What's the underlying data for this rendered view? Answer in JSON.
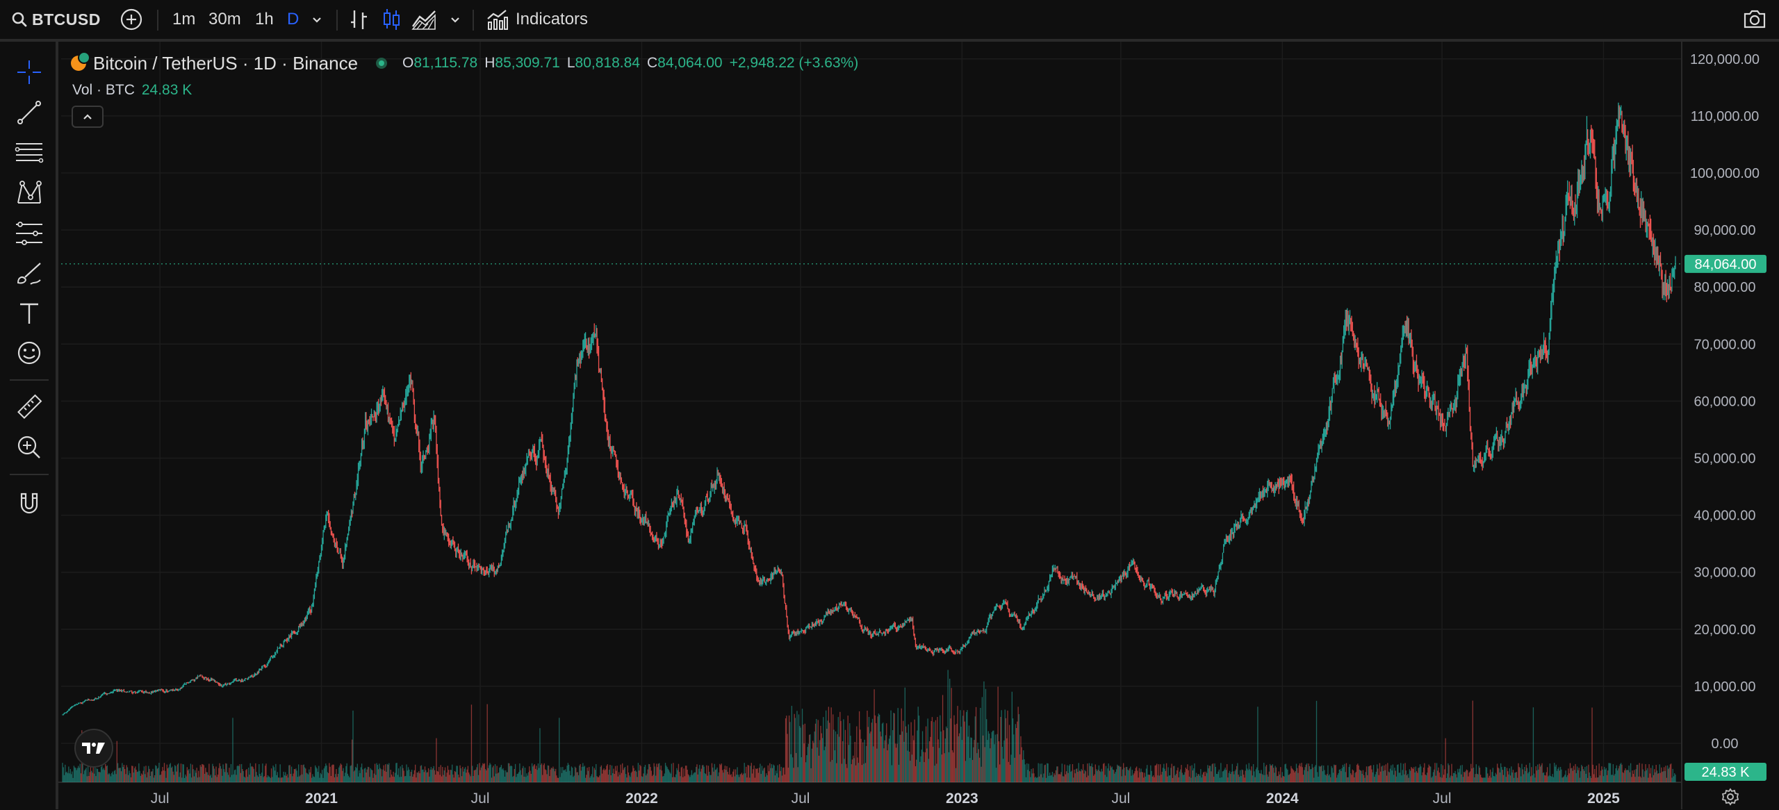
{
  "toolbar": {
    "symbol": "BTCUSD",
    "timeframes": [
      "1m",
      "30m",
      "1h",
      "D"
    ],
    "active_timeframe": "D",
    "indicators_label": "Indicators"
  },
  "legend": {
    "title": "Bitcoin / TetherUS · 1D · Binance",
    "open_key": "O",
    "open": "81,115.78",
    "high_key": "H",
    "high": "85,309.71",
    "low_key": "L",
    "low": "80,818.84",
    "close_key": "C",
    "close": "84,064.00",
    "change": "+2,948.22 (+3.63%)",
    "volume_label": "Vol · BTC",
    "volume_value": "24.83 K"
  },
  "price_axis": {
    "current_price_label": "84,064.00",
    "current_volume_label": "24.83 K"
  },
  "colors": {
    "up": "#26a69a",
    "down": "#ef5350",
    "accent": "#2962ff",
    "price_badge": "#2cb58a",
    "background": "#0f0f0f"
  },
  "chart_data": {
    "type": "candlestick",
    "symbol": "BTCUSD",
    "interval": "1D",
    "y_ticks": [
      "120,000.00",
      "110,000.00",
      "100,000.00",
      "90,000.00",
      "80,000.00",
      "70,000.00",
      "60,000.00",
      "50,000.00",
      "40,000.00",
      "30,000.00",
      "20,000.00",
      "10,000.00",
      "0.00"
    ],
    "ylim": [
      0,
      120000
    ],
    "x_ticks": [
      "Jul",
      "2021",
      "Jul",
      "2022",
      "Jul",
      "2023",
      "Jul",
      "2024",
      "Jul",
      "2025"
    ],
    "x_tick_dates": [
      "2020-07-01",
      "2021-01-01",
      "2021-07-01",
      "2022-01-01",
      "2022-07-01",
      "2023-01-01",
      "2023-07-01",
      "2024-01-01",
      "2024-07-01",
      "2025-01-01"
    ],
    "date_range": [
      "2020-03-12",
      "2025-03-24"
    ],
    "price_path": [
      [
        "2020-03-12",
        5000
      ],
      [
        "2020-03-25",
        6700
      ],
      [
        "2020-05-10",
        9000
      ],
      [
        "2020-07-20",
        9200
      ],
      [
        "2020-08-15",
        12000
      ],
      [
        "2020-09-10",
        10300
      ],
      [
        "2020-10-15",
        11500
      ],
      [
        "2020-11-20",
        18500
      ],
      [
        "2020-12-20",
        23500
      ],
      [
        "2021-01-08",
        41000
      ],
      [
        "2021-01-25",
        32000
      ],
      [
        "2021-02-20",
        56000
      ],
      [
        "2021-03-13",
        61000
      ],
      [
        "2021-03-25",
        52000
      ],
      [
        "2021-04-14",
        64000
      ],
      [
        "2021-04-25",
        49000
      ],
      [
        "2021-05-10",
        58000
      ],
      [
        "2021-05-20",
        37000
      ],
      [
        "2021-06-22",
        31500
      ],
      [
        "2021-07-20",
        29800
      ],
      [
        "2021-08-20",
        49000
      ],
      [
        "2021-09-07",
        52000
      ],
      [
        "2021-09-28",
        41000
      ],
      [
        "2021-10-20",
        66000
      ],
      [
        "2021-11-10",
        68500
      ],
      [
        "2021-12-04",
        47000
      ],
      [
        "2022-01-22",
        35000
      ],
      [
        "2022-02-10",
        44000
      ],
      [
        "2022-02-24",
        36000
      ],
      [
        "2022-03-30",
        47400
      ],
      [
        "2022-04-30",
        37600
      ],
      [
        "2022-05-12",
        28900
      ],
      [
        "2022-06-10",
        30000
      ],
      [
        "2022-06-18",
        18500
      ],
      [
        "2022-08-14",
        24400
      ],
      [
        "2022-09-20",
        19000
      ],
      [
        "2022-11-05",
        21300
      ],
      [
        "2022-11-10",
        16500
      ],
      [
        "2022-12-31",
        16500
      ],
      [
        "2023-02-15",
        24500
      ],
      [
        "2023-03-10",
        20000
      ],
      [
        "2023-04-14",
        30500
      ],
      [
        "2023-06-15",
        25000
      ],
      [
        "2023-07-13",
        31500
      ],
      [
        "2023-08-17",
        26000
      ],
      [
        "2023-10-15",
        27000
      ],
      [
        "2023-10-26",
        34500
      ],
      [
        "2023-12-08",
        44000
      ],
      [
        "2024-01-11",
        46700
      ],
      [
        "2024-01-23",
        39000
      ],
      [
        "2024-02-28",
        62000
      ],
      [
        "2024-03-14",
        73000
      ],
      [
        "2024-05-01",
        57000
      ],
      [
        "2024-05-21",
        71500
      ],
      [
        "2024-07-05",
        54000
      ],
      [
        "2024-07-29",
        70000
      ],
      [
        "2024-08-05",
        49000
      ],
      [
        "2024-09-06",
        53000
      ],
      [
        "2024-10-29",
        72000
      ],
      [
        "2024-11-12",
        89000
      ],
      [
        "2024-12-17",
        107000
      ],
      [
        "2024-12-30",
        92000
      ],
      [
        "2025-01-20",
        109000
      ],
      [
        "2025-02-05",
        98000
      ],
      [
        "2025-02-24",
        91000
      ],
      [
        "2025-03-10",
        78000
      ],
      [
        "2025-03-24",
        84064
      ]
    ],
    "last_close": 84064,
    "last_volume_k": 24.83
  }
}
